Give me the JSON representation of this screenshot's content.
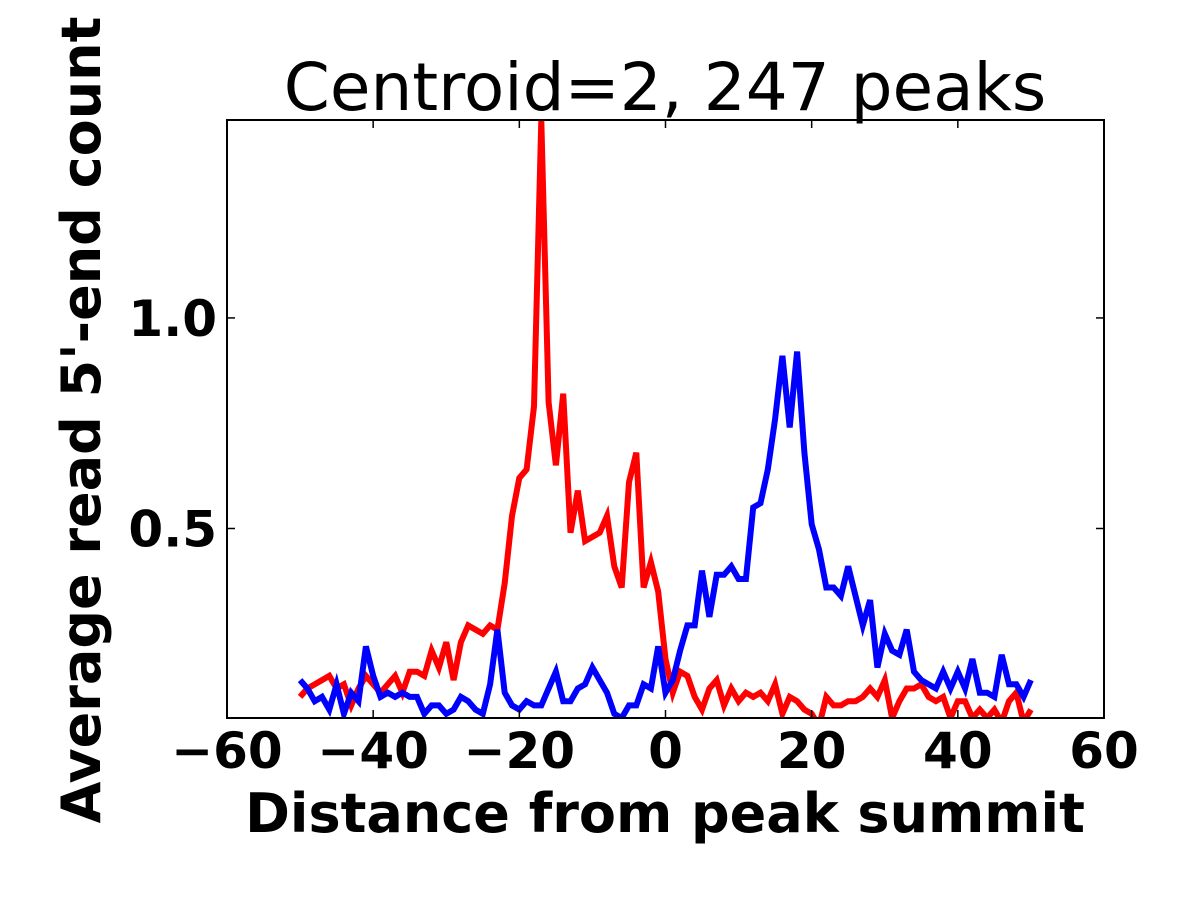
{
  "chart_data": {
    "type": "line",
    "title": "Centroid=2, 247 peaks",
    "xlabel": "Distance from peak summit",
    "ylabel": "Average read 5'-end count",
    "xlim": [
      -60,
      60
    ],
    "ylim": [
      0.05,
      1.47
    ],
    "xticks": [
      -60,
      -40,
      -20,
      0,
      20,
      40,
      60
    ],
    "xtick_labels": [
      "−60",
      "−40",
      "−20",
      "0",
      "20",
      "40",
      "60"
    ],
    "yticks": [
      0.5,
      1.0
    ],
    "ytick_labels": [
      "0.5",
      "1.0"
    ],
    "grid": false,
    "legend": "none",
    "x": [
      -50,
      -49,
      -48,
      -47,
      -46,
      -45,
      -44,
      -43,
      -42,
      -41,
      -40,
      -39,
      -38,
      -37,
      -36,
      -35,
      -34,
      -33,
      -32,
      -31,
      -30,
      -29,
      -28,
      -27,
      -26,
      -25,
      -24,
      -23,
      -22,
      -21,
      -20,
      -19,
      -18,
      -17,
      -16,
      -15,
      -14,
      -13,
      -12,
      -11,
      -10,
      -9,
      -8,
      -7,
      -6,
      -5,
      -4,
      -3,
      -2,
      -1,
      0,
      1,
      2,
      3,
      4,
      5,
      6,
      7,
      8,
      9,
      10,
      11,
      12,
      13,
      14,
      15,
      16,
      17,
      18,
      19,
      20,
      21,
      22,
      23,
      24,
      25,
      26,
      27,
      28,
      29,
      30,
      31,
      32,
      33,
      34,
      35,
      36,
      37,
      38,
      39,
      40,
      41,
      42,
      43,
      44,
      45,
      46,
      47,
      48,
      49,
      50
    ],
    "series": [
      {
        "color": "#ff0000",
        "values": [
          0.1,
          0.12,
          0.13,
          0.14,
          0.15,
          0.12,
          0.13,
          0.08,
          0.12,
          0.15,
          0.13,
          0.11,
          0.13,
          0.15,
          0.11,
          0.16,
          0.16,
          0.15,
          0.21,
          0.17,
          0.23,
          0.14,
          0.23,
          0.27,
          0.26,
          0.25,
          0.27,
          0.26,
          0.37,
          0.53,
          0.62,
          0.64,
          0.79,
          1.47,
          0.8,
          0.65,
          0.82,
          0.49,
          0.59,
          0.47,
          0.48,
          0.49,
          0.53,
          0.41,
          0.36,
          0.61,
          0.68,
          0.36,
          0.42,
          0.35,
          0.19,
          0.11,
          0.16,
          0.15,
          0.1,
          0.07,
          0.12,
          0.14,
          0.08,
          0.12,
          0.09,
          0.11,
          0.1,
          0.11,
          0.09,
          0.13,
          0.06,
          0.1,
          0.09,
          0.07,
          0.06,
          0.03,
          0.1,
          0.08,
          0.08,
          0.09,
          0.09,
          0.1,
          0.12,
          0.1,
          0.14,
          0.05,
          0.09,
          0.12,
          0.12,
          0.13,
          0.1,
          0.09,
          0.1,
          0.05,
          0.09,
          0.09,
          0.05,
          0.07,
          0.05,
          0.07,
          0.04,
          0.09,
          0.11,
          0.04,
          0.07
        ]
      },
      {
        "color": "#0000ff",
        "values": [
          0.14,
          0.12,
          0.09,
          0.1,
          0.07,
          0.13,
          0.06,
          0.11,
          0.09,
          0.22,
          0.15,
          0.1,
          0.11,
          0.1,
          0.11,
          0.1,
          0.1,
          0.06,
          0.08,
          0.08,
          0.06,
          0.07,
          0.1,
          0.09,
          0.07,
          0.06,
          0.13,
          0.26,
          0.11,
          0.08,
          0.07,
          0.09,
          0.08,
          0.08,
          0.12,
          0.16,
          0.09,
          0.09,
          0.12,
          0.13,
          0.17,
          0.14,
          0.11,
          0.06,
          0.05,
          0.08,
          0.08,
          0.13,
          0.12,
          0.22,
          0.11,
          0.14,
          0.21,
          0.27,
          0.27,
          0.4,
          0.29,
          0.39,
          0.39,
          0.41,
          0.38,
          0.38,
          0.55,
          0.56,
          0.64,
          0.76,
          0.91,
          0.74,
          0.92,
          0.68,
          0.51,
          0.45,
          0.36,
          0.36,
          0.34,
          0.41,
          0.34,
          0.27,
          0.33,
          0.17,
          0.25,
          0.21,
          0.2,
          0.26,
          0.16,
          0.14,
          0.13,
          0.12,
          0.16,
          0.12,
          0.16,
          0.12,
          0.19,
          0.11,
          0.11,
          0.1,
          0.2,
          0.13,
          0.13,
          0.1,
          0.14
        ]
      }
    ]
  }
}
